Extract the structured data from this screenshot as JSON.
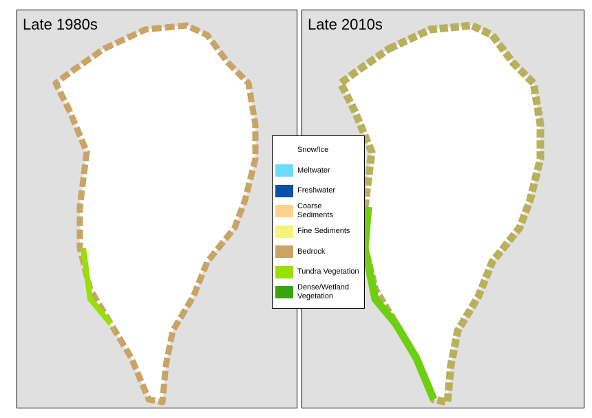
{
  "panels": [
    {
      "title": "Late 1980s"
    },
    {
      "title": "Late 2010s"
    }
  ],
  "legend": {
    "items": [
      {
        "label": "Snow/Ice",
        "color": "#ffffff"
      },
      {
        "label": "Meltwater",
        "color": "#6fdcf7"
      },
      {
        "label": "Freshwater",
        "color": "#0a4fa8"
      },
      {
        "label": "Coarse Sediments",
        "color": "#fdd28a"
      },
      {
        "label": "Fine Sediments",
        "color": "#f4f47a"
      },
      {
        "label": "Bedrock",
        "color": "#c9a464"
      },
      {
        "label": "Tundra Vegetation",
        "color": "#97e000"
      },
      {
        "label": "Dense/Wetland Vegetation",
        "color": "#3aa40f"
      }
    ]
  }
}
